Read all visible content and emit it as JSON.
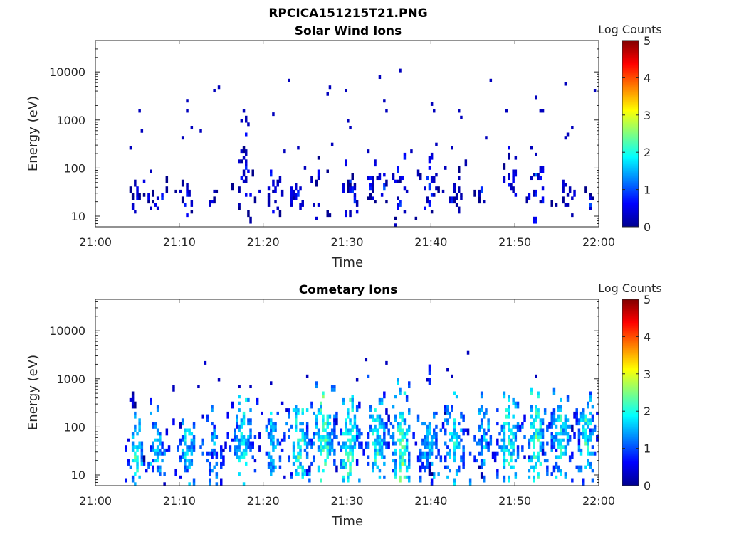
{
  "figure": {
    "title": "RPCICA151215T21.PNG"
  },
  "chart_data": [
    {
      "type": "heatmap",
      "title": "Solar Wind Ions",
      "xlabel": "Time",
      "ylabel": "Energy (eV)",
      "x_ticks": [
        "21:00",
        "21:10",
        "21:20",
        "21:30",
        "21:40",
        "21:50",
        "22:00"
      ],
      "xlim_minutes": [
        0,
        60
      ],
      "y_ticks": [
        "10",
        "100",
        "1000",
        "10000"
      ],
      "y_tick_values": [
        10,
        100,
        1000,
        10000
      ],
      "ylim": [
        6,
        45000
      ],
      "y_scale": "log",
      "colorbar": {
        "label": "Log Counts",
        "ticks": [
          "0",
          "1",
          "2",
          "3",
          "4",
          "5"
        ],
        "range": [
          0,
          5
        ],
        "colormap": "jet"
      },
      "clusters": [
        {
          "t": 5.0,
          "e": 28,
          "span_t": 1.3,
          "span_e": 1.7,
          "v": 0.25,
          "n": 14
        },
        {
          "t": 7.5,
          "e": 27,
          "span_t": 1.5,
          "span_e": 1.6,
          "v": 0.25,
          "n": 12
        },
        {
          "t": 11.0,
          "e": 24,
          "span_t": 1.4,
          "span_e": 1.6,
          "v": 0.2,
          "n": 12
        },
        {
          "t": 14.2,
          "e": 24,
          "span_t": 0.8,
          "span_e": 1.4,
          "v": 0.2,
          "n": 5
        },
        {
          "t": 17.8,
          "e": 30,
          "span_t": 1.4,
          "span_e": 2.2,
          "v": 0.3,
          "n": 18
        },
        {
          "t": 17.8,
          "e": 250,
          "span_t": 0.4,
          "span_e": 2.5,
          "v": 0.25,
          "n": 8
        },
        {
          "t": 21.2,
          "e": 28,
          "span_t": 1.2,
          "span_e": 1.6,
          "v": 0.25,
          "n": 14
        },
        {
          "t": 24.0,
          "e": 28,
          "span_t": 1.5,
          "span_e": 1.6,
          "v": 0.3,
          "n": 18
        },
        {
          "t": 26.7,
          "e": 45,
          "span_t": 1.0,
          "span_e": 2.2,
          "v": 0.25,
          "n": 12
        },
        {
          "t": 30.3,
          "e": 35,
          "span_t": 1.6,
          "span_e": 2.4,
          "v": 0.3,
          "n": 22
        },
        {
          "t": 33.5,
          "e": 35,
          "span_t": 1.6,
          "span_e": 2.2,
          "v": 0.3,
          "n": 20
        },
        {
          "t": 36.2,
          "e": 35,
          "span_t": 1.4,
          "span_e": 2.2,
          "v": 0.3,
          "n": 18
        },
        {
          "t": 39.7,
          "e": 30,
          "span_t": 1.6,
          "span_e": 2.0,
          "v": 0.3,
          "n": 22
        },
        {
          "t": 43.0,
          "e": 35,
          "span_t": 1.6,
          "span_e": 2.2,
          "v": 0.3,
          "n": 18
        },
        {
          "t": 45.8,
          "e": 25,
          "span_t": 0.7,
          "span_e": 1.3,
          "v": 0.25,
          "n": 6
        },
        {
          "t": 49.5,
          "e": 45,
          "span_t": 1.0,
          "span_e": 2.2,
          "v": 0.3,
          "n": 14
        },
        {
          "t": 52.5,
          "e": 35,
          "span_t": 1.4,
          "span_e": 2.0,
          "v": 0.3,
          "n": 16
        },
        {
          "t": 56.0,
          "e": 25,
          "span_t": 1.4,
          "span_e": 1.6,
          "v": 0.25,
          "n": 14
        },
        {
          "t": 59.0,
          "e": 22,
          "span_t": 0.8,
          "span_e": 1.4,
          "v": 0.25,
          "n": 6
        },
        {
          "t": 52.3,
          "e": 9,
          "span_t": 0.4,
          "span_e": 1.3,
          "v": 0.3,
          "n": 4
        }
      ],
      "points": [
        [
          4.3,
          270,
          0.3
        ],
        [
          5.3,
          1600,
          0.3
        ],
        [
          5.5,
          600,
          0.3
        ],
        [
          6.5,
          90,
          0.3
        ],
        [
          10.5,
          430,
          0.3
        ],
        [
          10.9,
          1550,
          0.3
        ],
        [
          11.0,
          2400,
          0.3
        ],
        [
          11.4,
          650,
          0.3
        ],
        [
          12.5,
          560,
          0.3
        ],
        [
          14.2,
          4200,
          0.3
        ],
        [
          14.8,
          4900,
          0.3
        ],
        [
          17.3,
          1000,
          0.3
        ],
        [
          17.7,
          1500,
          0.3
        ],
        [
          18.2,
          800,
          0.3
        ],
        [
          21.1,
          1350,
          0.3
        ],
        [
          22.5,
          230,
          0.3
        ],
        [
          23.1,
          6200,
          0.3
        ],
        [
          24.1,
          270,
          0.3
        ],
        [
          25.0,
          100,
          0.3
        ],
        [
          27.7,
          3700,
          0.3
        ],
        [
          27.9,
          4900,
          0.3
        ],
        [
          28.2,
          290,
          0.3
        ],
        [
          29.8,
          4200,
          0.3
        ],
        [
          30.1,
          900,
          0.3
        ],
        [
          30.5,
          650,
          0.3
        ],
        [
          32.5,
          210,
          0.3
        ],
        [
          33.8,
          7300,
          0.3
        ],
        [
          34.3,
          2600,
          0.3
        ],
        [
          34.6,
          1600,
          0.3
        ],
        [
          36.2,
          10000,
          0.3
        ],
        [
          37.8,
          210,
          0.3
        ],
        [
          40.2,
          2200,
          0.3
        ],
        [
          40.4,
          1450,
          0.3
        ],
        [
          40.7,
          330,
          0.3
        ],
        [
          41.7,
          95,
          0.3
        ],
        [
          42.5,
          250,
          0.3
        ],
        [
          43.2,
          1450,
          0.3
        ],
        [
          43.5,
          1100,
          0.3
        ],
        [
          47.2,
          6200,
          0.3
        ],
        [
          46.7,
          420,
          0.3
        ],
        [
          49.0,
          1550,
          0.3
        ],
        [
          50.0,
          160,
          0.3
        ],
        [
          52.0,
          250,
          0.3
        ],
        [
          52.4,
          180,
          0.3
        ],
        [
          52.6,
          3000,
          0.3
        ],
        [
          53.0,
          1550,
          0.3
        ],
        [
          53.2,
          1450,
          0.3
        ],
        [
          56.0,
          5600,
          0.3
        ],
        [
          56.3,
          500,
          0.3
        ],
        [
          55.9,
          400,
          0.3
        ],
        [
          56.8,
          650,
          0.3
        ],
        [
          59.5,
          3900,
          0.3
        ],
        [
          53.3,
          80,
          0.3
        ]
      ]
    },
    {
      "type": "heatmap",
      "title": "Cometary Ions",
      "xlabel": "Time",
      "ylabel": "Energy (eV)",
      "x_ticks": [
        "21:00",
        "21:10",
        "21:20",
        "21:30",
        "21:40",
        "21:50",
        "22:00"
      ],
      "xlim_minutes": [
        0,
        60
      ],
      "y_ticks": [
        "10",
        "100",
        "1000",
        "10000"
      ],
      "y_tick_values": [
        10,
        100,
        1000,
        10000
      ],
      "ylim": [
        6,
        45000
      ],
      "y_scale": "log",
      "colorbar": {
        "label": "Log Counts",
        "ticks": [
          "0",
          "1",
          "2",
          "3",
          "4",
          "5"
        ],
        "range": [
          0,
          5
        ],
        "colormap": "jet"
      },
      "clusters": [
        {
          "t": 4.8,
          "e": 30,
          "span_t": 1.4,
          "span_e": 2.0,
          "v": 1.2,
          "n": 45
        },
        {
          "t": 4.4,
          "e": 300,
          "span_t": 0.3,
          "span_e": 2.4,
          "v": 0.3,
          "n": 8
        },
        {
          "t": 7.5,
          "e": 35,
          "span_t": 1.6,
          "span_e": 2.6,
          "v": 1.0,
          "n": 50
        },
        {
          "t": 11.0,
          "e": 32,
          "span_t": 1.6,
          "span_e": 2.4,
          "v": 1.1,
          "n": 50
        },
        {
          "t": 14.0,
          "e": 32,
          "span_t": 1.6,
          "span_e": 2.6,
          "v": 0.9,
          "n": 45
        },
        {
          "t": 17.6,
          "e": 45,
          "span_t": 1.8,
          "span_e": 3.0,
          "v": 1.2,
          "n": 70
        },
        {
          "t": 21.0,
          "e": 40,
          "span_t": 1.6,
          "span_e": 2.8,
          "v": 1.0,
          "n": 55
        },
        {
          "t": 24.3,
          "e": 45,
          "span_t": 1.8,
          "span_e": 3.2,
          "v": 1.3,
          "n": 80
        },
        {
          "t": 27.2,
          "e": 55,
          "span_t": 1.8,
          "span_e": 3.2,
          "v": 1.4,
          "n": 100
        },
        {
          "t": 30.3,
          "e": 50,
          "span_t": 1.8,
          "span_e": 3.2,
          "v": 1.3,
          "n": 85
        },
        {
          "t": 33.5,
          "e": 50,
          "span_t": 1.7,
          "span_e": 3.0,
          "v": 1.2,
          "n": 75
        },
        {
          "t": 36.5,
          "e": 55,
          "span_t": 1.7,
          "span_e": 3.2,
          "v": 1.4,
          "n": 90
        },
        {
          "t": 39.7,
          "e": 40,
          "span_t": 1.7,
          "span_e": 2.8,
          "v": 1.1,
          "n": 70
        },
        {
          "t": 39.8,
          "e": 1000,
          "span_t": 0.3,
          "span_e": 1.5,
          "v": 0.4,
          "n": 6
        },
        {
          "t": 42.8,
          "e": 45,
          "span_t": 1.7,
          "span_e": 2.8,
          "v": 1.2,
          "n": 65
        },
        {
          "t": 46.2,
          "e": 40,
          "span_t": 1.5,
          "span_e": 2.8,
          "v": 1.0,
          "n": 55
        },
        {
          "t": 49.3,
          "e": 55,
          "span_t": 1.7,
          "span_e": 3.0,
          "v": 1.3,
          "n": 75
        },
        {
          "t": 52.5,
          "e": 55,
          "span_t": 1.7,
          "span_e": 3.0,
          "v": 1.4,
          "n": 80
        },
        {
          "t": 55.5,
          "e": 60,
          "span_t": 1.8,
          "span_e": 3.0,
          "v": 1.2,
          "n": 90
        },
        {
          "t": 58.5,
          "e": 60,
          "span_t": 1.6,
          "span_e": 3.0,
          "v": 1.2,
          "n": 80
        },
        {
          "t": 40.0,
          "e": 9,
          "span_t": 0.3,
          "span_e": 1.4,
          "v": 0.3,
          "n": 5
        },
        {
          "t": 46.2,
          "e": 9,
          "span_t": 0.3,
          "span_e": 1.4,
          "v": 0.3,
          "n": 5
        }
      ],
      "points": [
        [
          13.1,
          2100,
          0.4
        ],
        [
          13.2,
          2200,
          0.4
        ],
        [
          14.7,
          900,
          0.3
        ],
        [
          9.3,
          550,
          0.3
        ],
        [
          9.4,
          650,
          0.3
        ],
        [
          12.4,
          720,
          0.3
        ],
        [
          17.1,
          650,
          0.3
        ],
        [
          18.5,
          700,
          0.3
        ],
        [
          20.8,
          820,
          0.3
        ],
        [
          25.2,
          1200,
          0.3
        ],
        [
          31.1,
          1000,
          0.3
        ],
        [
          32.4,
          2500,
          0.3
        ],
        [
          34.7,
          2300,
          0.3
        ],
        [
          41.9,
          1600,
          0.3
        ],
        [
          42.5,
          1200,
          0.3
        ],
        [
          44.4,
          3300,
          0.3
        ],
        [
          52.6,
          1150,
          0.3
        ],
        [
          8.2,
          6,
          0.3
        ]
      ]
    }
  ]
}
